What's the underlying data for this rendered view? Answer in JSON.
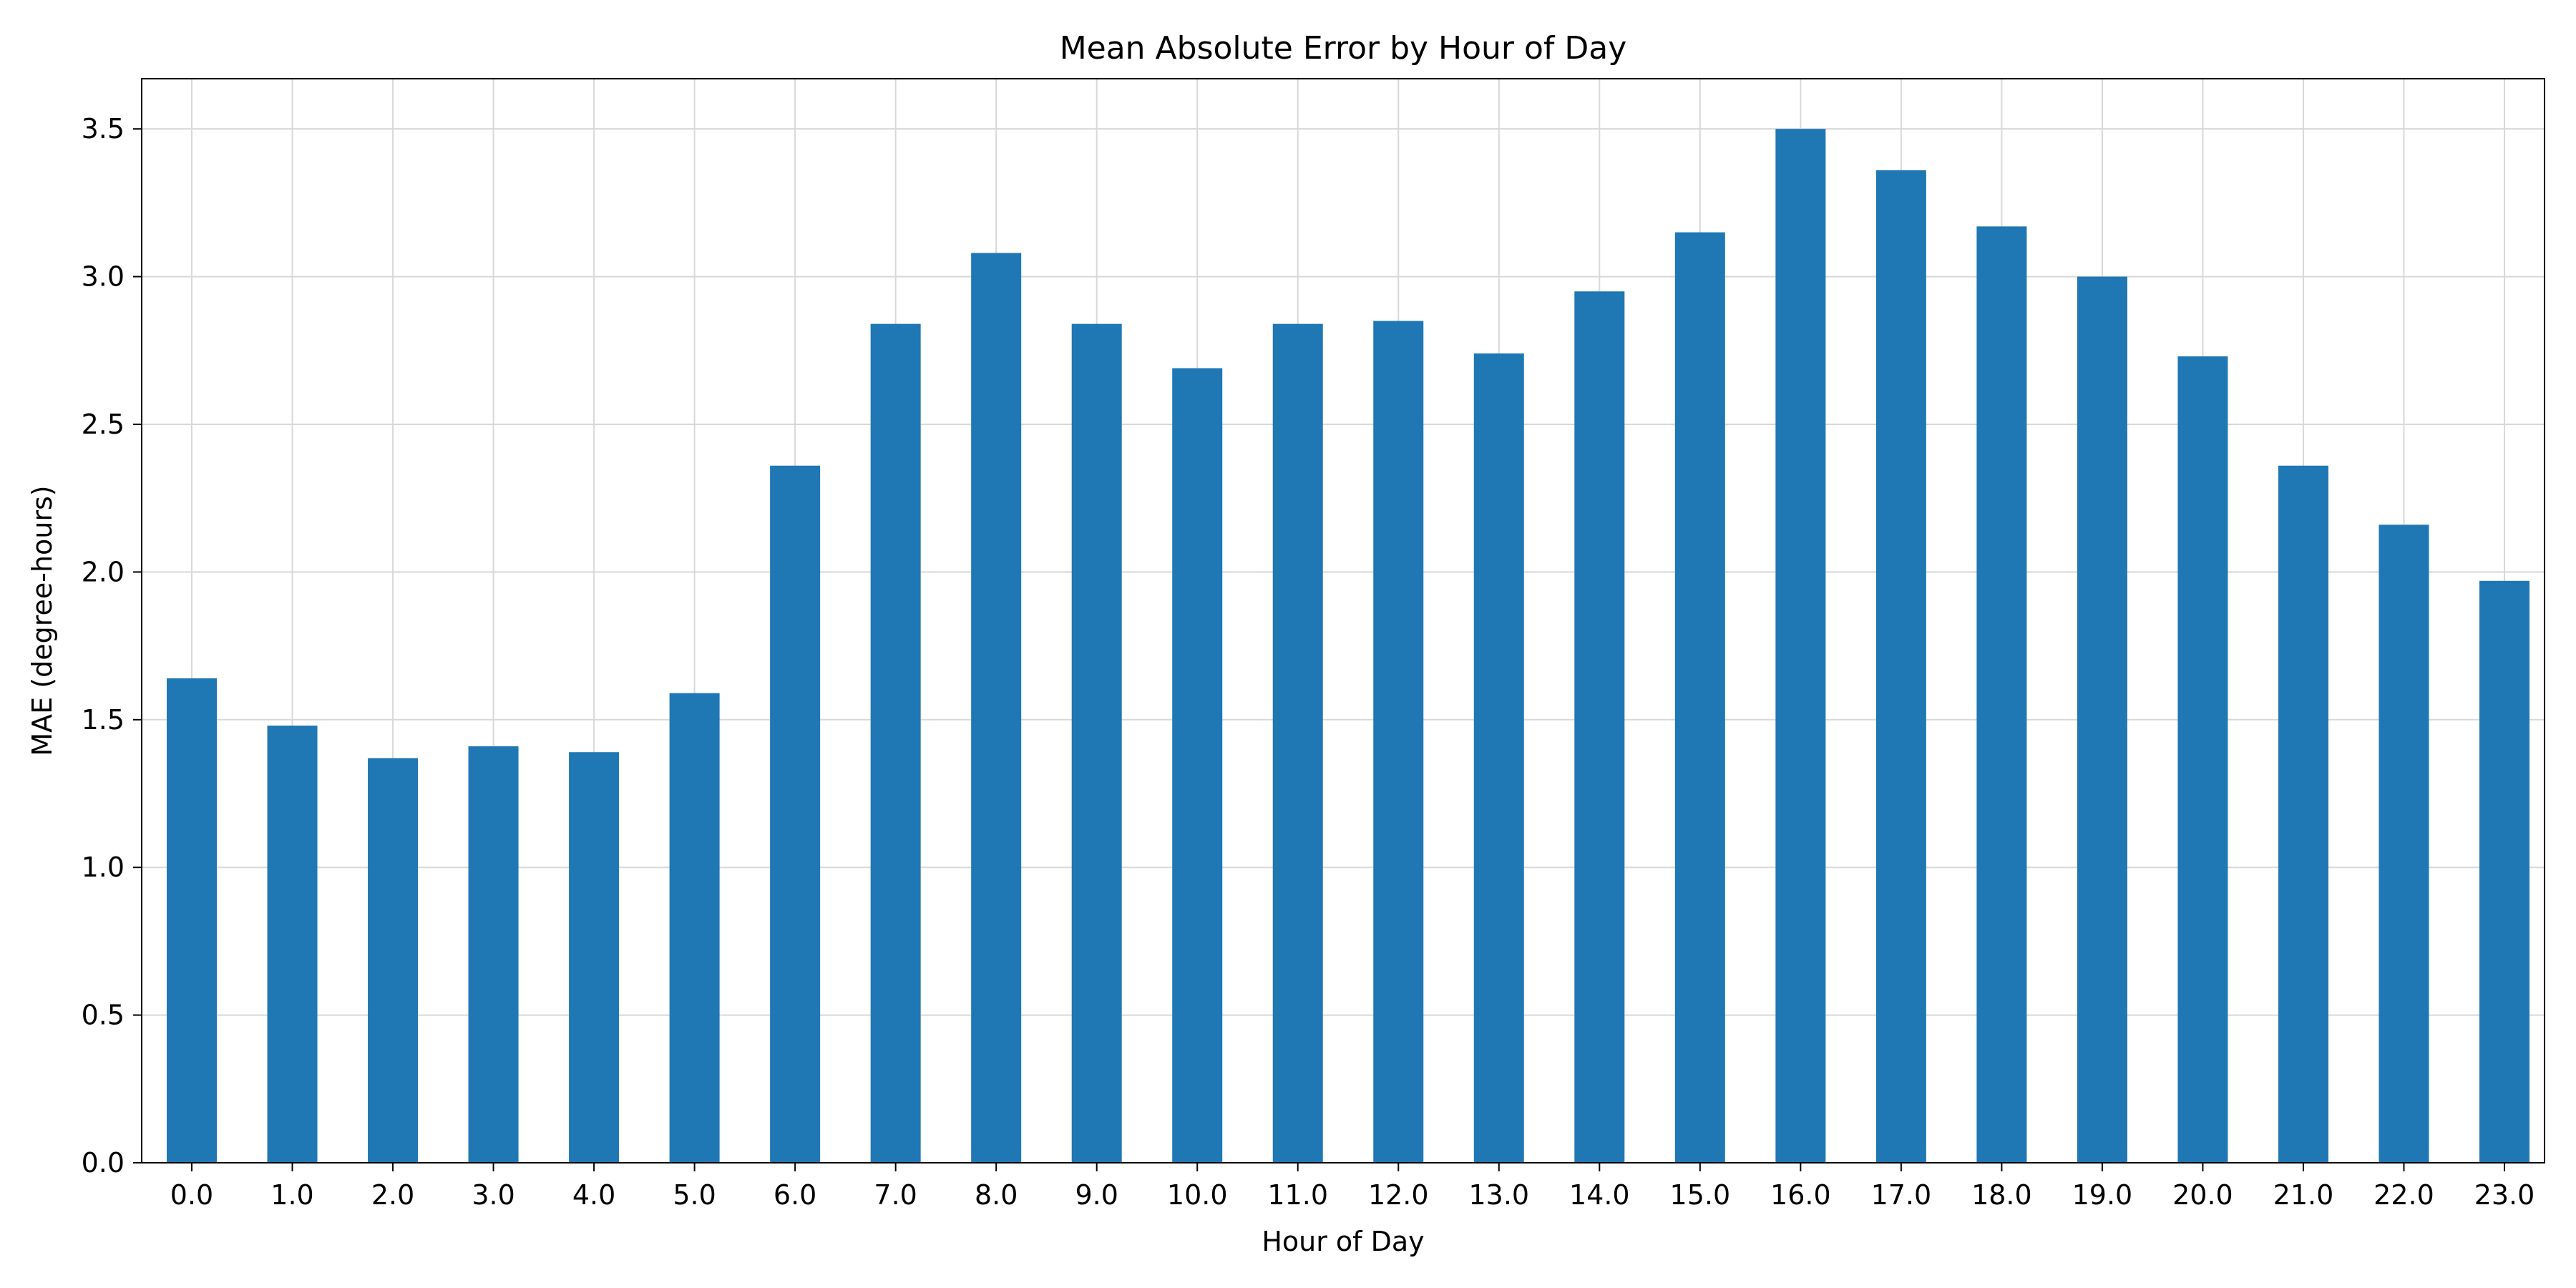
{
  "chart_data": {
    "type": "bar",
    "title": "Mean Absolute Error by Hour of Day",
    "xlabel": "Hour of Day",
    "ylabel": "MAE (degree-hours)",
    "categories": [
      "0.0",
      "1.0",
      "2.0",
      "3.0",
      "4.0",
      "5.0",
      "6.0",
      "7.0",
      "8.0",
      "9.0",
      "10.0",
      "11.0",
      "12.0",
      "13.0",
      "14.0",
      "15.0",
      "16.0",
      "17.0",
      "18.0",
      "19.0",
      "20.0",
      "21.0",
      "22.0",
      "23.0"
    ],
    "values": [
      1.64,
      1.48,
      1.37,
      1.41,
      1.39,
      1.59,
      2.36,
      2.84,
      3.08,
      2.84,
      2.69,
      2.84,
      2.85,
      2.74,
      2.95,
      3.15,
      3.5,
      3.36,
      3.17,
      3.0,
      2.73,
      2.36,
      2.16,
      1.97
    ],
    "ylim": [
      0,
      3.67
    ],
    "yticks": [
      "0.0",
      "0.5",
      "1.0",
      "1.5",
      "2.0",
      "2.5",
      "3.0",
      "3.5"
    ],
    "grid": true,
    "colors": {
      "bar": "#1f77b4",
      "grid": "#d8d8d8",
      "axis": "#000000"
    }
  }
}
